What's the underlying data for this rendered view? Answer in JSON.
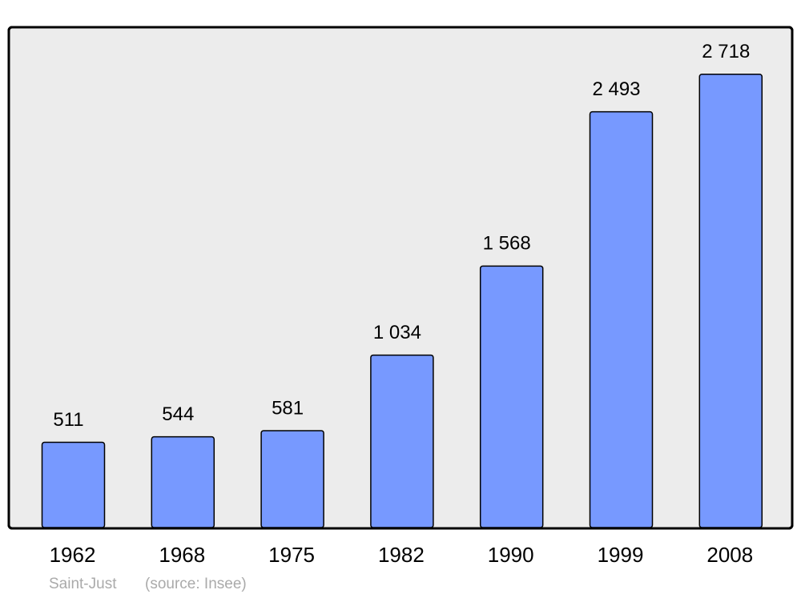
{
  "chart_data": {
    "type": "bar",
    "categories": [
      "1962",
      "1968",
      "1975",
      "1982",
      "1990",
      "1999",
      "2008"
    ],
    "values": [
      511,
      544,
      581,
      1034,
      1568,
      2493,
      2718
    ],
    "value_labels": [
      "511",
      "544",
      "581",
      "1 034",
      "1 568",
      "2 493",
      "2 718"
    ],
    "color": "#7799ff",
    "ylim": [
      0,
      3000
    ],
    "caption": "Saint-Just",
    "source": "(source: Insee)"
  }
}
